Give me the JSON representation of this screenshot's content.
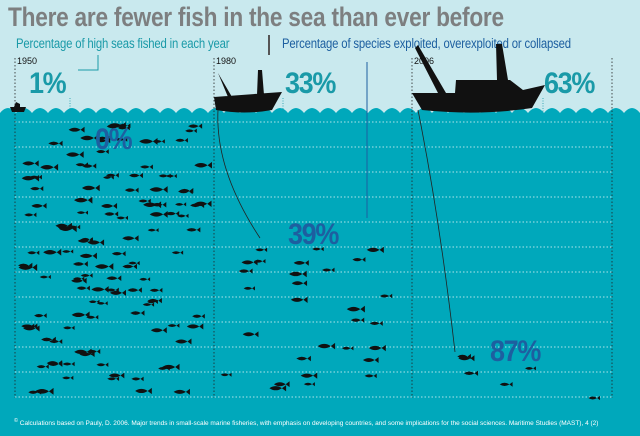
{
  "title": "There are fewer fish in the sea than ever before",
  "legend": {
    "high_seas": "Percentage of high seas fished in each year",
    "species": "Percentage of species exploited, overexploited or collapsed"
  },
  "colors": {
    "sea": "#00a8bb",
    "teal": "#1a9aa8",
    "blue": "#1d5fa0",
    "title": "#7d7f80"
  },
  "chart_data": {
    "type": "table",
    "title": "There are fewer fish in the sea than ever before",
    "categories": [
      "1950",
      "1980",
      "2006"
    ],
    "series": [
      {
        "name": "Percentage of high seas fished in each year",
        "values": [
          1,
          33,
          63
        ],
        "labels": [
          "1%",
          "33%",
          "63%"
        ]
      },
      {
        "name": "Percentage of species exploited, overexploited or collapsed",
        "values": [
          0,
          39,
          87
        ],
        "labels": [
          "0%",
          "39%",
          "87%"
        ]
      }
    ]
  },
  "footnote_mark": "©",
  "footnote": "Calculations based on Pauly, D. 2006. Major trends in small-scale marine fisheries, with emphasis on developing countries, and some implications for the social sciences. Maritime Studies (MAST), 4 (2)"
}
